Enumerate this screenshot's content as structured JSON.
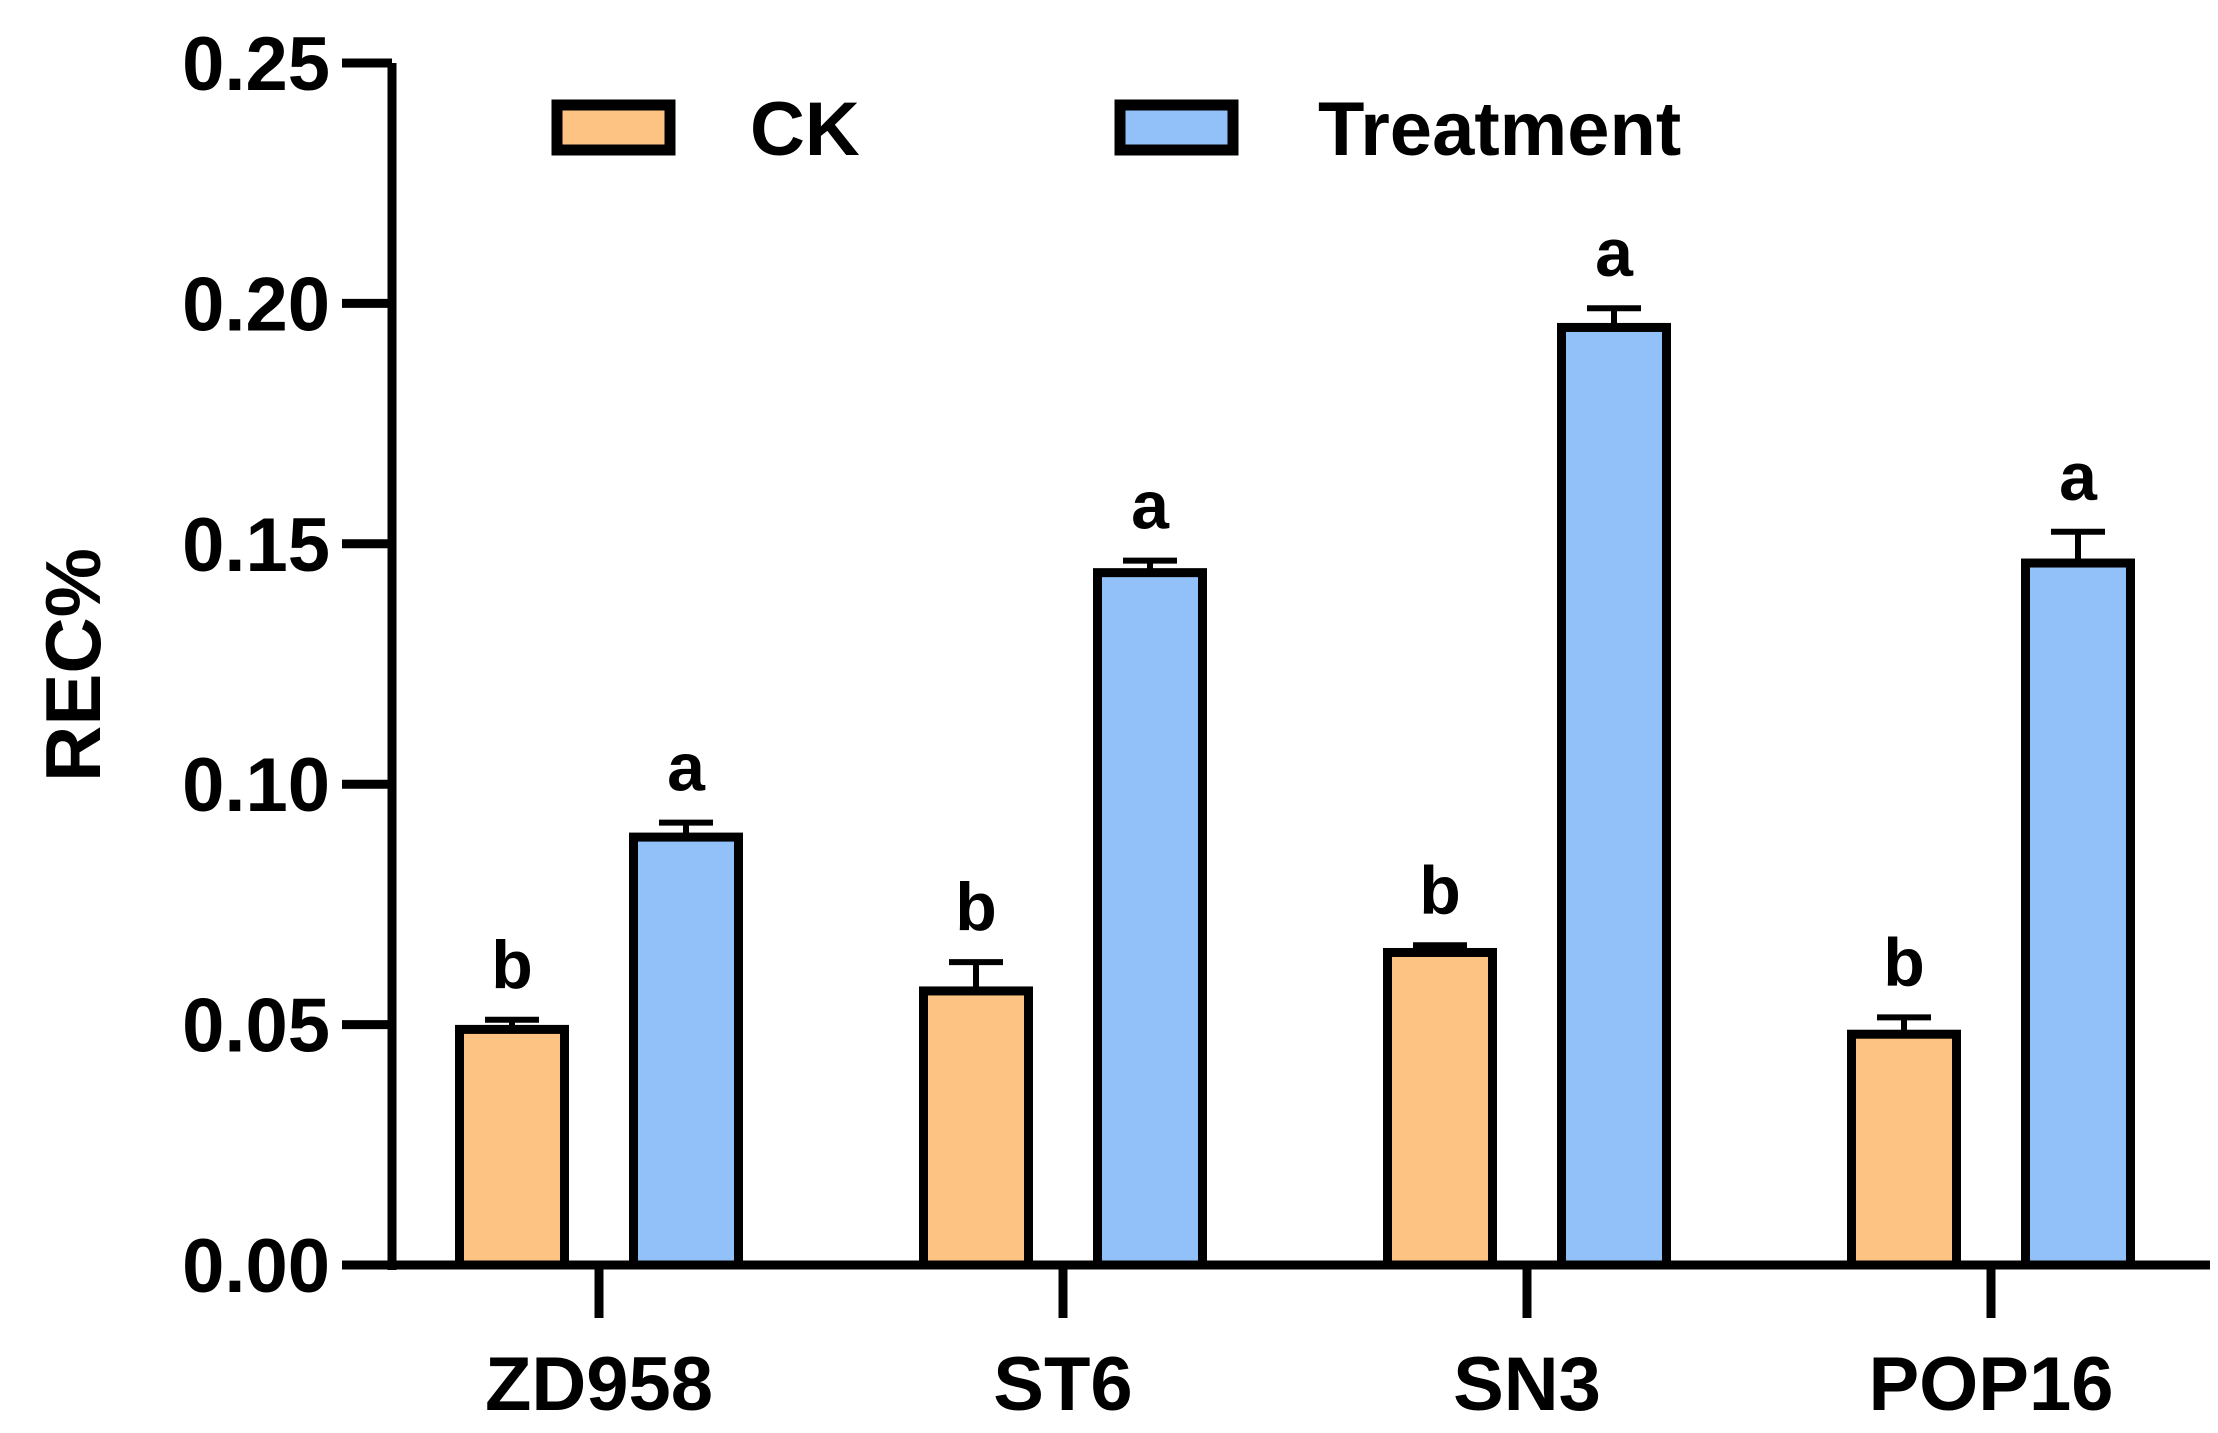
{
  "chart_data": {
    "type": "bar",
    "title": "",
    "xlabel": "",
    "ylabel": "REC%",
    "ylim": [
      0,
      0.25
    ],
    "yticks": [
      "0.00",
      "0.05",
      "0.10",
      "0.15",
      "0.20",
      "0.25"
    ],
    "ytick_values": [
      0,
      0.05,
      0.1,
      0.15,
      0.2,
      0.25
    ],
    "categories": [
      "ZD958",
      "ST6",
      "SN3",
      "POP16"
    ],
    "series": [
      {
        "name": "CK",
        "color": "#FDC382",
        "values": [
          0.049,
          0.057,
          0.065,
          0.048
        ],
        "errors": [
          0.002,
          0.006,
          0.0015,
          0.0035
        ],
        "labels": [
          "b",
          "b",
          "b",
          "b"
        ]
      },
      {
        "name": "Treatment",
        "color": "#92C0F8",
        "values": [
          0.089,
          0.144,
          0.195,
          0.146
        ],
        "errors": [
          0.003,
          0.0025,
          0.004,
          0.0065
        ],
        "labels": [
          "a",
          "a",
          "a",
          "a"
        ]
      }
    ],
    "legend_position": "top",
    "grid": false
  }
}
